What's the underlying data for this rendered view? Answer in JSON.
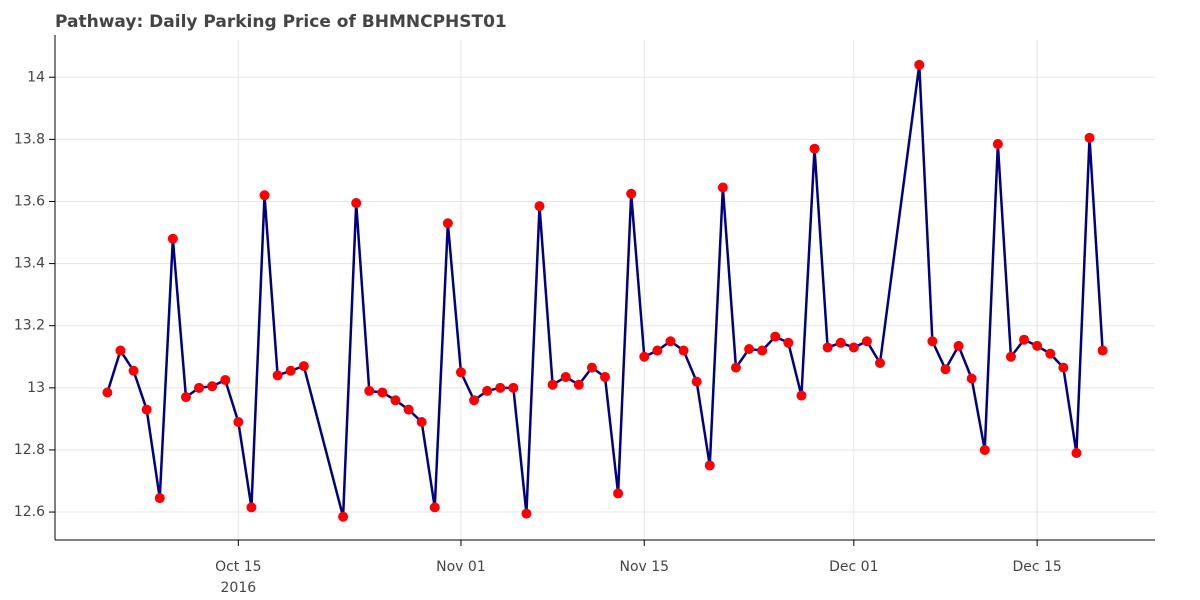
{
  "chart_data": {
    "type": "line",
    "title": "Pathway: Daily Parking Price of BHMNCPHST01",
    "x": [
      "2016-10-05",
      "2016-10-06",
      "2016-10-07",
      "2016-10-08",
      "2016-10-09",
      "2016-10-10",
      "2016-10-11",
      "2016-10-12",
      "2016-10-13",
      "2016-10-14",
      "2016-10-15",
      "2016-10-16",
      "2016-10-17",
      "2016-10-18",
      "2016-10-19",
      "2016-10-20",
      "2016-10-23",
      "2016-10-24",
      "2016-10-25",
      "2016-10-26",
      "2016-10-27",
      "2016-10-28",
      "2016-10-29",
      "2016-10-30",
      "2016-10-31",
      "2016-11-01",
      "2016-11-02",
      "2016-11-03",
      "2016-11-04",
      "2016-11-05",
      "2016-11-06",
      "2016-11-07",
      "2016-11-08",
      "2016-11-09",
      "2016-11-10",
      "2016-11-11",
      "2016-11-12",
      "2016-11-13",
      "2016-11-14",
      "2016-11-15",
      "2016-11-16",
      "2016-11-17",
      "2016-11-18",
      "2016-11-19",
      "2016-11-20",
      "2016-11-21",
      "2016-11-22",
      "2016-11-23",
      "2016-11-24",
      "2016-11-25",
      "2016-11-26",
      "2016-11-27",
      "2016-11-28",
      "2016-11-29",
      "2016-11-30",
      "2016-12-01",
      "2016-12-02",
      "2016-12-03",
      "2016-12-06",
      "2016-12-07",
      "2016-12-08",
      "2016-12-09",
      "2016-12-10",
      "2016-12-11",
      "2016-12-12",
      "2016-12-13",
      "2016-12-14",
      "2016-12-15",
      "2016-12-16",
      "2016-12-17",
      "2016-12-18",
      "2016-12-19",
      "2016-12-20"
    ],
    "series": [
      {
        "line_color": "#000080",
        "marker_color": "#ff0000",
        "values": [
          12.985,
          13.12,
          13.055,
          12.93,
          12.645,
          13.48,
          12.97,
          13.0,
          13.005,
          13.025,
          12.89,
          12.615,
          13.62,
          13.04,
          13.055,
          13.07,
          12.585,
          13.595,
          12.99,
          12.985,
          12.96,
          12.93,
          12.89,
          12.615,
          13.53,
          13.05,
          12.96,
          12.99,
          13.0,
          13.0,
          12.595,
          13.585,
          13.01,
          13.035,
          13.01,
          13.065,
          13.035,
          12.66,
          13.625,
          13.1,
          13.12,
          13.15,
          13.12,
          13.02,
          12.75,
          13.645,
          13.065,
          13.125,
          13.12,
          13.165,
          13.145,
          12.975,
          13.77,
          13.13,
          13.145,
          13.13,
          13.15,
          13.08,
          14.04,
          13.15,
          13.06,
          13.135,
          13.03,
          12.8,
          13.785,
          13.1,
          13.155,
          13.135,
          13.11,
          13.065,
          12.79,
          13.805,
          13.12
        ]
      }
    ],
    "xlim": [
      "2016-10-01",
      "2016-12-24"
    ],
    "xticks": [
      {
        "value": "2016-10-15",
        "label": "Oct 15",
        "year": "2016"
      },
      {
        "value": "2016-11-01",
        "label": "Nov 01"
      },
      {
        "value": "2016-11-15",
        "label": "Nov 15"
      },
      {
        "value": "2016-12-01",
        "label": "Dec 01"
      },
      {
        "value": "2016-12-15",
        "label": "Dec 15"
      }
    ],
    "ylim": [
      12.51,
      14.12
    ],
    "yticks": [
      12.6,
      12.8,
      13,
      13.2,
      13.4,
      13.6,
      13.8,
      14
    ],
    "grid": true
  }
}
